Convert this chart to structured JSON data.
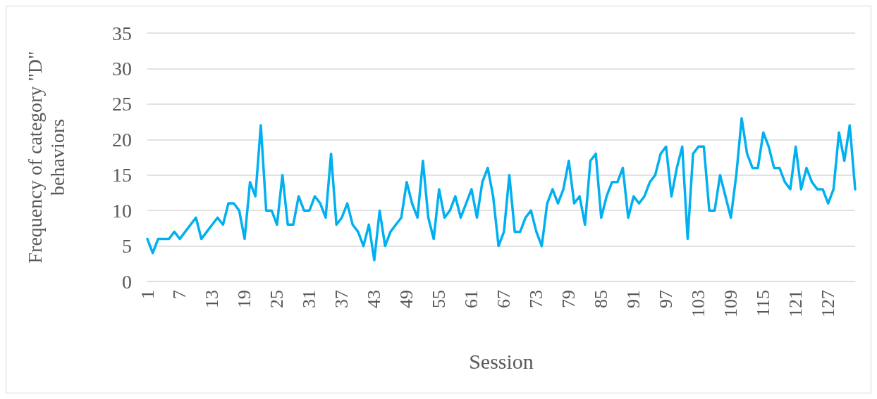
{
  "chart_data": {
    "type": "line",
    "xlabel": "Session",
    "ylabel": "Frequency of category \"D\" behaviors",
    "categories": [
      "1",
      null,
      null,
      null,
      null,
      null,
      "7",
      null,
      null,
      null,
      null,
      null,
      "13",
      null,
      null,
      null,
      null,
      null,
      "19",
      null,
      null,
      null,
      null,
      null,
      "25",
      null,
      null,
      null,
      null,
      null,
      "31",
      null,
      null,
      null,
      null,
      null,
      "37",
      null,
      null,
      null,
      null,
      null,
      "43",
      null,
      null,
      null,
      null,
      null,
      "49",
      null,
      null,
      null,
      null,
      null,
      "55",
      null,
      null,
      null,
      null,
      null,
      "61",
      null,
      null,
      null,
      null,
      null,
      "67",
      null,
      null,
      null,
      null,
      null,
      "73",
      null,
      null,
      null,
      null,
      null,
      "79",
      null,
      null,
      null,
      null,
      null,
      "85",
      null,
      null,
      null,
      null,
      null,
      "91",
      null,
      null,
      null,
      null,
      null,
      "97",
      null,
      null,
      null,
      null,
      null,
      "103",
      null,
      null,
      null,
      null,
      null,
      "109",
      null,
      null,
      null,
      null,
      null,
      "115",
      null,
      null,
      null,
      null,
      null,
      "121",
      null,
      null,
      null,
      null,
      null,
      "127",
      null,
      null,
      null,
      null,
      null
    ],
    "series": [
      {
        "color": "#00b0f0",
        "values": [
          6,
          4,
          6,
          6,
          6,
          7,
          6,
          7,
          8,
          9,
          6,
          7,
          8,
          9,
          8,
          11,
          11,
          10,
          6,
          14,
          12,
          22,
          10,
          10,
          8,
          15,
          8,
          8,
          12,
          10,
          10,
          12,
          11,
          9,
          18,
          8,
          9,
          11,
          8,
          7,
          5,
          8,
          3,
          10,
          5,
          7,
          8,
          9,
          14,
          11,
          9,
          17,
          9,
          6,
          13,
          9,
          10,
          12,
          9,
          11,
          13,
          9,
          14,
          16,
          12,
          5,
          7,
          15,
          7,
          7,
          9,
          10,
          7,
          5,
          11,
          13,
          11,
          13,
          17,
          11,
          12,
          8,
          17,
          18,
          9,
          12,
          14,
          14,
          16,
          9,
          12,
          11,
          12,
          14,
          15,
          18,
          19,
          12,
          16,
          19,
          6,
          18,
          19,
          19,
          10,
          10,
          15,
          12,
          9,
          15,
          23,
          18,
          16,
          16,
          21,
          19,
          16,
          16,
          14,
          13,
          19,
          13,
          16,
          14,
          13,
          13,
          11,
          13,
          21,
          17,
          22,
          13
        ]
      }
    ],
    "ylim": [
      0,
      35
    ],
    "yticks": [
      0,
      5,
      10,
      15,
      20,
      25,
      30,
      35
    ],
    "grid": "y",
    "marker": "none",
    "line_style": "solid"
  }
}
